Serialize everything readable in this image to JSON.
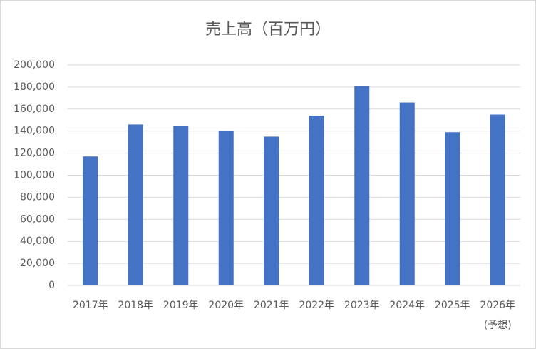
{
  "chart_data": {
    "type": "bar",
    "title": "売上高（百万円）",
    "categories": [
      "2017年",
      "2018年",
      "2019年",
      "2020年",
      "2021年",
      "2022年",
      "2023年",
      "2024年",
      "2025年",
      "2026年\n(予想)"
    ],
    "values": [
      117000,
      146000,
      145000,
      140000,
      135000,
      154000,
      181000,
      166000,
      139000,
      155000
    ],
    "color": "#4472c4",
    "ylim": [
      0,
      200000
    ],
    "yticks": [
      0,
      {
        "value": 20000,
        "label": "20,000"
      },
      {
        "value": 40000,
        "label": "40,000"
      },
      {
        "value": 60000,
        "label": "60,000"
      },
      {
        "value": 80000,
        "label": "80,000"
      },
      {
        "value": 100000,
        "label": "100,000"
      },
      {
        "value": 120000,
        "label": "120,000"
      },
      {
        "value": 140000,
        "label": "140,000"
      },
      {
        "value": 160000,
        "label": "160,000"
      },
      {
        "value": 180000,
        "label": "180,000"
      },
      {
        "value": 200000,
        "label": "200,000"
      }
    ],
    "grid": true
  }
}
